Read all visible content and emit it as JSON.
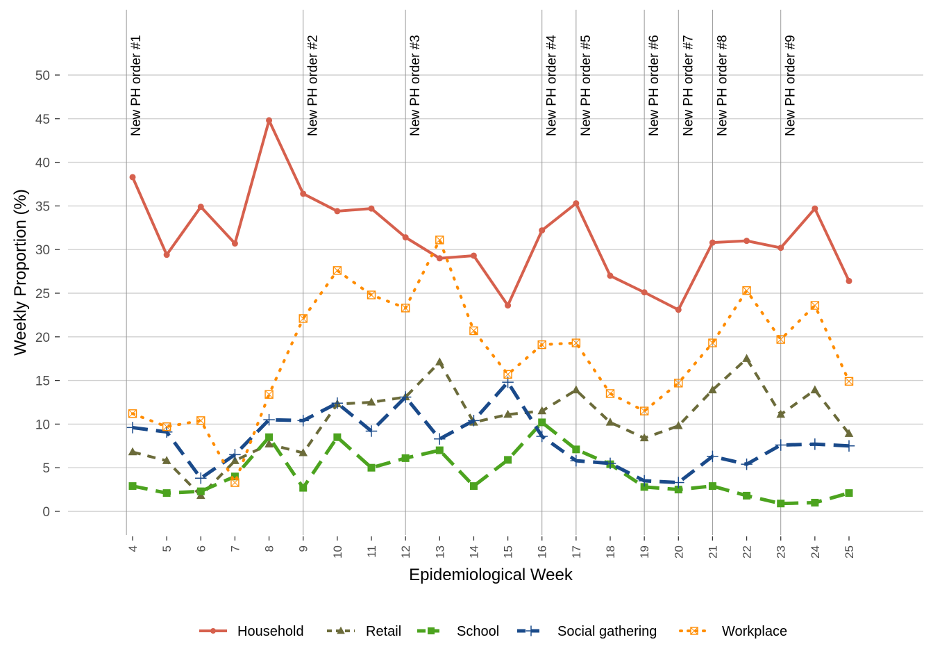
{
  "chart_data": {
    "type": "line",
    "title": "",
    "xlabel": "Epidemiological Week",
    "ylabel": "Weekly Proportion (%)",
    "x": [
      4,
      5,
      6,
      7,
      8,
      9,
      10,
      11,
      12,
      13,
      14,
      15,
      16,
      17,
      18,
      19,
      20,
      21,
      22,
      23,
      24,
      25
    ],
    "x_tick_labels": [
      "4",
      "5",
      "6",
      "7",
      "8",
      "9",
      "10",
      "11",
      "12",
      "13",
      "14",
      "15",
      "16",
      "17",
      "18",
      "19",
      "20",
      "21",
      "22",
      "23",
      "24",
      "25"
    ],
    "ylim": [
      -2.5,
      53
    ],
    "xlim": [
      3.2,
      27.3
    ],
    "y_ticks": [
      0,
      5,
      10,
      15,
      20,
      25,
      30,
      35,
      40,
      45,
      50
    ],
    "y_tick_labels": [
      "0",
      "5",
      "10",
      "15",
      "20",
      "25",
      "30",
      "35",
      "40",
      "45",
      "50"
    ],
    "grid": true,
    "legend_position": "bottom",
    "series": [
      {
        "name": "Household",
        "color": "#d6604d",
        "line": "solid",
        "marker": "circle",
        "values": [
          38.3,
          29.4,
          34.9,
          30.7,
          44.8,
          36.4,
          34.4,
          34.7,
          31.4,
          29.0,
          29.3,
          23.6,
          32.2,
          35.3,
          27.0,
          25.1,
          23.1,
          30.8,
          31.0,
          30.2,
          34.7,
          26.4
        ]
      },
      {
        "name": "Retail",
        "color": "#6b6b3a",
        "line": "dashed",
        "marker": "triangle",
        "values": [
          6.8,
          5.8,
          1.8,
          5.8,
          7.7,
          6.7,
          12.3,
          12.5,
          13.1,
          17.1,
          10.2,
          11.1,
          11.5,
          13.9,
          10.2,
          8.4,
          9.8,
          13.9,
          17.5,
          11.1,
          13.9,
          8.9
        ]
      },
      {
        "name": "School",
        "color": "#4ca31f",
        "line": "longdash",
        "marker": "square",
        "values": [
          2.9,
          2.1,
          2.3,
          4.0,
          8.5,
          2.7,
          8.5,
          5.0,
          6.1,
          7.0,
          2.9,
          5.9,
          10.2,
          7.1,
          5.4,
          2.8,
          2.5,
          2.9,
          1.8,
          0.9,
          1.0,
          2.1
        ]
      },
      {
        "name": "Social gathering",
        "color": "#1a4a8a",
        "line": "longdash",
        "marker": "plus",
        "values": [
          9.6,
          9.1,
          3.8,
          6.5,
          10.5,
          10.4,
          12.4,
          9.2,
          13.1,
          8.3,
          10.4,
          14.8,
          8.6,
          5.8,
          5.5,
          3.5,
          3.3,
          6.3,
          5.4,
          7.6,
          7.7,
          7.5
        ]
      },
      {
        "name": "Workplace",
        "color": "#ff8c00",
        "line": "dotted",
        "marker": "square-x",
        "values": [
          11.2,
          9.7,
          10.4,
          3.3,
          13.4,
          22.1,
          27.6,
          24.8,
          23.3,
          31.1,
          20.7,
          15.7,
          19.1,
          19.3,
          13.5,
          11.5,
          14.7,
          19.3,
          25.3,
          19.7,
          23.6,
          14.9
        ]
      }
    ],
    "annotations": [
      {
        "label": "New PH order #1",
        "week": 3.82
      },
      {
        "label": "New PH order #2",
        "week": 9
      },
      {
        "label": "New PH order #3",
        "week": 12
      },
      {
        "label": "New PH order #4",
        "week": 16
      },
      {
        "label": "New PH order #5",
        "week": 17
      },
      {
        "label": "New PH order #6",
        "week": 19
      },
      {
        "label": "New PH order #7",
        "week": 20
      },
      {
        "label": "New PH order #8",
        "week": 21
      },
      {
        "label": "New PH order #9",
        "week": 23
      }
    ]
  }
}
